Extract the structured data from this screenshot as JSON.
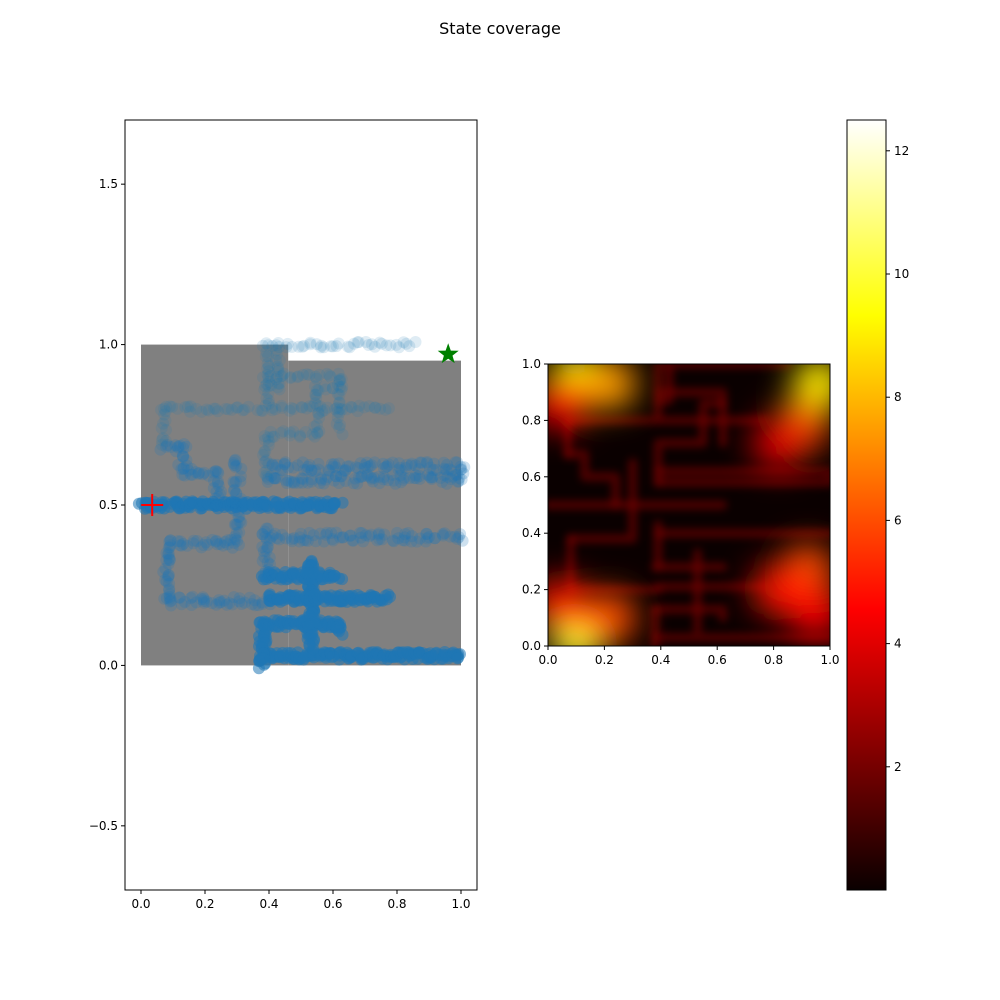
{
  "figure": {
    "title": "State coverage"
  },
  "colors": {
    "maze_floor": "#808080",
    "trajectory": "#1f77b4",
    "start_marker": "#ff0000",
    "goal_marker": "#008000"
  },
  "chart_data": [
    {
      "type": "scatter",
      "title": "",
      "xlabel": "",
      "ylabel": "",
      "xlim": [
        -0.05,
        1.05
      ],
      "ylim": [
        -0.7,
        1.7
      ],
      "xticks": [
        0.0,
        0.2,
        0.4,
        0.6,
        0.8,
        1.0
      ],
      "xtick_labels": [
        "0.0",
        "0.2",
        "0.4",
        "0.6",
        "0.8",
        "1.0"
      ],
      "yticks": [
        -0.5,
        0.0,
        0.5,
        1.0,
        1.5
      ],
      "ytick_labels": [
        "−0.5",
        "0.0",
        "0.5",
        "1.0",
        "1.5"
      ],
      "grid": false,
      "maze_regions": [
        {
          "x0": 0.0,
          "y0": 0.0,
          "x1": 0.46,
          "y1": 1.0
        },
        {
          "x0": 0.46,
          "y0": 0.0,
          "x1": 1.0,
          "y1": 0.95
        }
      ],
      "trajectory_segments": [
        {
          "points": [
            [
              0.38,
              0.03
            ],
            [
              1.0,
              0.03
            ]
          ],
          "density": "high"
        },
        {
          "points": [
            [
              0.38,
              0.13
            ],
            [
              0.38,
              0.0
            ]
          ],
          "density": "high"
        },
        {
          "points": [
            [
              0.38,
              0.13
            ],
            [
              0.62,
              0.13
            ],
            [
              0.62,
              0.1
            ]
          ],
          "density": "high"
        },
        {
          "points": [
            [
              0.53,
              0.33
            ],
            [
              0.53,
              0.06
            ]
          ],
          "density": "high"
        },
        {
          "points": [
            [
              0.39,
              0.21
            ],
            [
              0.77,
              0.21
            ]
          ],
          "density": "high"
        },
        {
          "points": [
            [
              0.0,
              0.5
            ],
            [
              0.62,
              0.5
            ]
          ],
          "density": "high"
        },
        {
          "points": [
            [
              0.38,
              0.28
            ],
            [
              0.62,
              0.28
            ]
          ],
          "density": "high"
        },
        {
          "points": [
            [
              0.08,
              0.2
            ],
            [
              0.39,
              0.2
            ]
          ],
          "density": "medium"
        },
        {
          "points": [
            [
              0.08,
              0.38
            ],
            [
              0.08,
              0.2
            ]
          ],
          "density": "medium"
        },
        {
          "points": [
            [
              0.08,
              0.38
            ],
            [
              0.3,
              0.38
            ],
            [
              0.3,
              0.65
            ]
          ],
          "density": "medium"
        },
        {
          "points": [
            [
              0.39,
              0.4
            ],
            [
              1.0,
              0.4
            ]
          ],
          "density": "medium"
        },
        {
          "points": [
            [
              0.39,
              0.28
            ],
            [
              0.39,
              0.43
            ]
          ],
          "density": "medium"
        },
        {
          "points": [
            [
              0.24,
              0.5
            ],
            [
              0.24,
              0.6
            ],
            [
              0.13,
              0.6
            ],
            [
              0.13,
              0.68
            ],
            [
              0.07,
              0.68
            ]
          ],
          "density": "medium"
        },
        {
          "points": [
            [
              0.07,
              0.8
            ],
            [
              0.07,
              0.68
            ]
          ],
          "density": "low"
        },
        {
          "points": [
            [
              0.07,
              0.8
            ],
            [
              0.77,
              0.8
            ]
          ],
          "density": "low"
        },
        {
          "points": [
            [
              0.39,
              0.58
            ],
            [
              1.0,
              0.58
            ],
            [
              1.0,
              0.62
            ],
            [
              0.39,
              0.62
            ]
          ],
          "density": "medium"
        },
        {
          "points": [
            [
              0.39,
              0.58
            ],
            [
              0.39,
              0.72
            ],
            [
              0.55,
              0.72
            ],
            [
              0.55,
              0.86
            ],
            [
              0.62,
              0.86
            ],
            [
              0.62,
              0.72
            ]
          ],
          "density": "low"
        },
        {
          "points": [
            [
              0.39,
              0.82
            ],
            [
              0.39,
              1.0
            ],
            [
              0.85,
              1.0
            ]
          ],
          "density": "low"
        },
        {
          "points": [
            [
              0.39,
              0.9
            ],
            [
              0.62,
              0.9
            ],
            [
              0.62,
              0.86
            ]
          ],
          "density": "low"
        },
        {
          "points": [
            [
              0.43,
              0.98
            ],
            [
              0.43,
              0.87
            ],
            [
              0.39,
              0.87
            ]
          ],
          "density": "low"
        }
      ],
      "markers": [
        {
          "shape": "plus",
          "x": 0.035,
          "y": 0.5,
          "color": "#ff0000"
        },
        {
          "shape": "star",
          "x": 0.96,
          "y": 0.97,
          "color": "#008000"
        }
      ]
    },
    {
      "type": "heatmap",
      "title": "",
      "xlabel": "",
      "ylabel": "",
      "xlim": [
        0.0,
        1.0
      ],
      "ylim": [
        0.0,
        1.0
      ],
      "xticks": [
        0.0,
        0.2,
        0.4,
        0.6,
        0.8,
        1.0
      ],
      "xtick_labels": [
        "0.0",
        "0.2",
        "0.4",
        "0.6",
        "0.8",
        "1.0"
      ],
      "yticks": [
        0.0,
        0.2,
        0.4,
        0.6,
        0.8,
        1.0
      ],
      "ytick_labels": [
        "0.0",
        "0.2",
        "0.4",
        "0.6",
        "0.8",
        "1.0"
      ],
      "colormap": "hot",
      "vmin": 0.0,
      "vmax": 12.5,
      "colorbar_ticks": [
        2,
        4,
        6,
        8,
        10,
        12
      ],
      "colorbar_tick_labels": [
        "2",
        "4",
        "6",
        "8",
        "10",
        "12"
      ],
      "hotspots": [
        {
          "x": 0.1,
          "y": 0.95,
          "value": 9.5
        },
        {
          "x": 0.22,
          "y": 0.93,
          "value": 7.5
        },
        {
          "x": 0.05,
          "y": 0.86,
          "value": 4.5
        },
        {
          "x": 0.1,
          "y": 0.03,
          "value": 10.0
        },
        {
          "x": 0.22,
          "y": 0.1,
          "value": 6.0
        },
        {
          "x": 0.05,
          "y": 0.15,
          "value": 5.0
        },
        {
          "x": 0.96,
          "y": 0.93,
          "value": 9.0
        },
        {
          "x": 0.9,
          "y": 0.78,
          "value": 6.0
        },
        {
          "x": 0.82,
          "y": 0.72,
          "value": 4.0
        },
        {
          "x": 0.92,
          "y": 0.27,
          "value": 6.0
        },
        {
          "x": 0.82,
          "y": 0.2,
          "value": 5.0
        },
        {
          "x": 0.95,
          "y": 0.12,
          "value": 4.5
        }
      ],
      "background_level": 0.8,
      "corridor_level": 2.0
    }
  ]
}
